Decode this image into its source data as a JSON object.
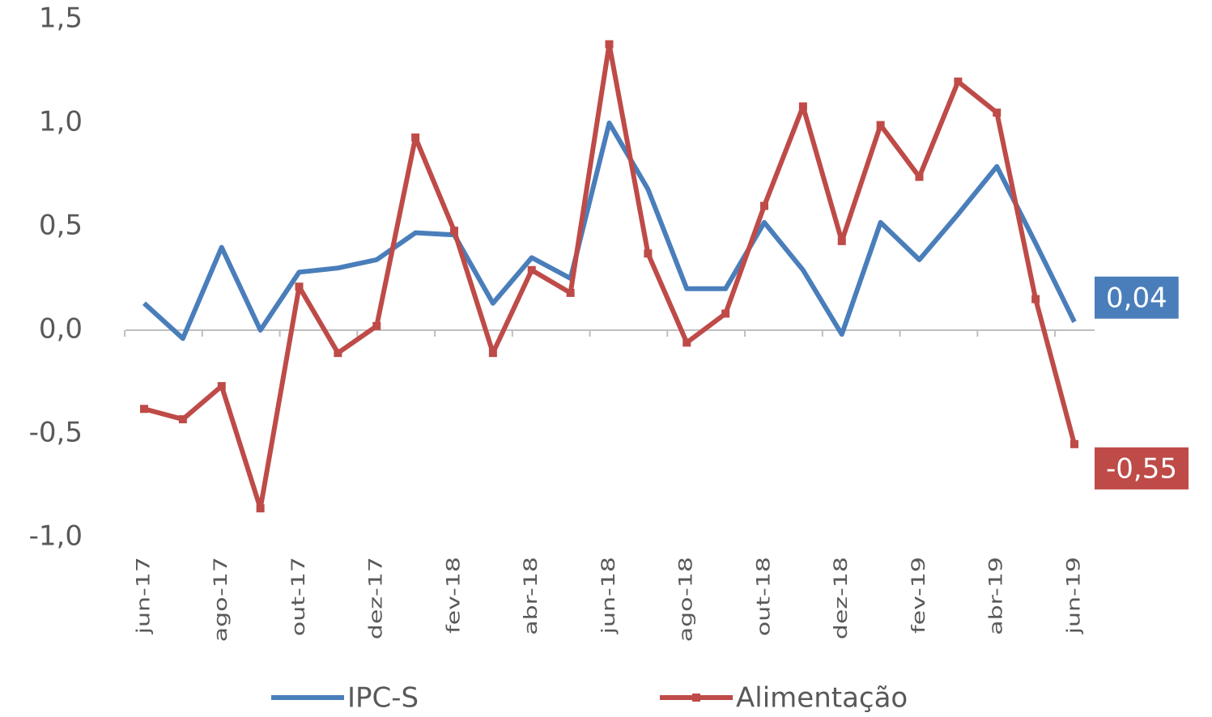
{
  "chart_data": {
    "type": "line",
    "categories": [
      "jun-17",
      null,
      "ago-17",
      null,
      "out-17",
      null,
      "dez-17",
      null,
      "fev-18",
      null,
      "abr-18",
      null,
      "jun-18",
      null,
      "ago-18",
      null,
      "out-18",
      null,
      "dez-18",
      null,
      "fev-19",
      null,
      "abr-19",
      null,
      "jun-19"
    ],
    "series": [
      {
        "name": "IPC-S",
        "color": "#4a7ebb",
        "marker": "none",
        "values": [
          0.13,
          -0.04,
          0.4,
          0.0,
          0.28,
          0.3,
          0.34,
          0.47,
          0.46,
          0.13,
          0.35,
          0.25,
          1.0,
          0.68,
          0.2,
          0.2,
          0.52,
          0.29,
          -0.02,
          0.52,
          0.34,
          0.56,
          0.79,
          0.42,
          0.04
        ],
        "value_labels": [
          null,
          null,
          null,
          null,
          null,
          null,
          null,
          null,
          null,
          null,
          null,
          null,
          null,
          null,
          null,
          null,
          null,
          null,
          null,
          null,
          null,
          null,
          null,
          null,
          "0,04"
        ]
      },
      {
        "name": "Alimentação",
        "color": "#be4b48",
        "marker": "square",
        "values": [
          -0.38,
          -0.43,
          -0.27,
          -0.86,
          0.21,
          -0.11,
          0.02,
          0.93,
          0.48,
          -0.11,
          0.29,
          0.18,
          1.38,
          0.37,
          -0.06,
          0.08,
          0.6,
          1.08,
          0.43,
          0.99,
          0.74,
          1.2,
          1.05,
          0.15,
          -0.55
        ],
        "value_labels": [
          null,
          null,
          null,
          null,
          null,
          null,
          null,
          null,
          null,
          null,
          null,
          null,
          null,
          null,
          null,
          null,
          null,
          null,
          null,
          null,
          null,
          null,
          null,
          null,
          "-0,55"
        ]
      }
    ],
    "ylim": [
      -1.0,
      1.5
    ],
    "yticks": [
      {
        "value": -1.0,
        "label": "-1,0"
      },
      {
        "value": -0.5,
        "label": "-0,5"
      },
      {
        "value": 0.0,
        "label": "0,0"
      },
      {
        "value": 0.5,
        "label": "0,5"
      },
      {
        "value": 1.0,
        "label": "1,0"
      },
      {
        "value": 1.5,
        "label": "1,5"
      }
    ],
    "grid": false,
    "legend": "bottom"
  }
}
